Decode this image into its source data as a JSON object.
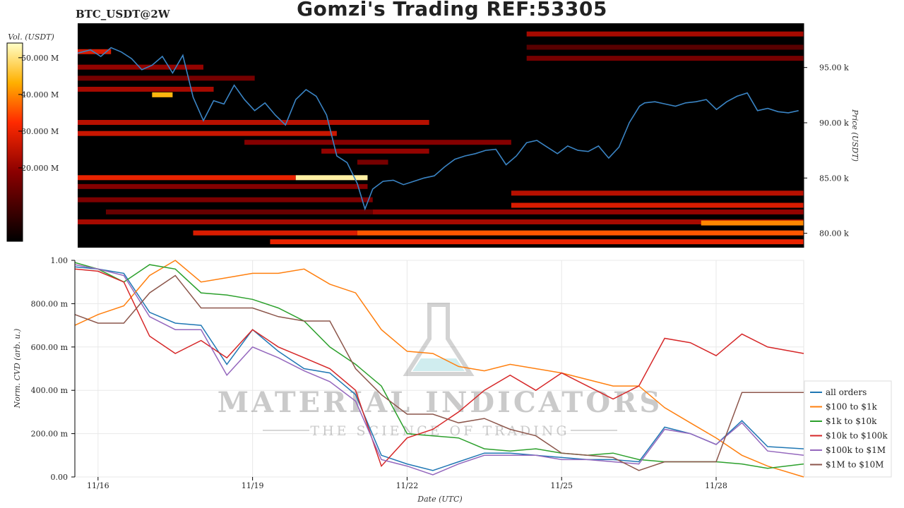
{
  "title": "Gomzi's Trading REF:53305",
  "symbol": "BTC_USDT@2W",
  "colorbar": {
    "label": "Vol. (USDT)",
    "ticks": [
      {
        "label": "50.000 M",
        "value": 50
      },
      {
        "label": "40.000 M",
        "value": 40
      },
      {
        "label": "30.000 M",
        "value": 30
      },
      {
        "label": "20.000 M",
        "value": 20
      }
    ],
    "range": [
      0,
      54
    ]
  },
  "watermark": {
    "main": "MATERIAL INDICATORS",
    "sub": "THE SCIENCE OF TRADING"
  },
  "chart_data": [
    {
      "type": "heatmap",
      "ylabel": "Price (USDT)",
      "ylim": [
        78700,
        99000
      ],
      "yticks": [
        {
          "label": "95.00 k",
          "value": 95000
        },
        {
          "label": "90.00 k",
          "value": 90000
        },
        {
          "label": "85.00 k",
          "value": 85000
        },
        {
          "label": "80.00 k",
          "value": 80000
        }
      ],
      "xlim": [
        15.55,
        29.7
      ],
      "price_line": {
        "color": "#3a84c4",
        "x": [
          15.55,
          15.8,
          16.0,
          16.2,
          16.4,
          16.6,
          16.8,
          17.0,
          17.2,
          17.4,
          17.6,
          17.8,
          18.0,
          18.2,
          18.4,
          18.6,
          18.8,
          19.0,
          19.2,
          19.4,
          19.6,
          19.8,
          20.0,
          20.2,
          20.4,
          20.6,
          20.8,
          21.0,
          21.15,
          21.3,
          21.5,
          21.7,
          21.9,
          22.1,
          22.3,
          22.5,
          22.7,
          22.9,
          23.1,
          23.3,
          23.5,
          23.7,
          23.9,
          24.1,
          24.3,
          24.5,
          24.7,
          24.9,
          25.1,
          25.3,
          25.5,
          25.7,
          25.9,
          26.1,
          26.3,
          26.5,
          26.6,
          26.8,
          27.0,
          27.2,
          27.4,
          27.6,
          27.8,
          28.0,
          28.2,
          28.4,
          28.6,
          28.8,
          29.0,
          29.2,
          29.4,
          29.6
        ],
        "y": [
          96300,
          96600,
          96000,
          96800,
          96400,
          95800,
          94800,
          95200,
          96000,
          94500,
          96100,
          92300,
          90200,
          92000,
          91700,
          93400,
          92100,
          91100,
          91800,
          90700,
          89800,
          92100,
          93000,
          92400,
          90700,
          87000,
          86400,
          84500,
          82200,
          84000,
          84700,
          84800,
          84400,
          84700,
          85000,
          85200,
          86000,
          86700,
          87000,
          87200,
          87500,
          87600,
          86200,
          87000,
          88200,
          88400,
          87800,
          87200,
          87900,
          87500,
          87400,
          87900,
          86800,
          87800,
          90000,
          91500,
          91800,
          91900,
          91700,
          91500,
          91800,
          91900,
          92100,
          91200,
          91900,
          92400,
          92700,
          91100,
          91300,
          91000,
          90900,
          91100
        ]
      },
      "bands": [
        {
          "price": 96400,
          "x0": 15.55,
          "x1": 16.2,
          "level": 28
        },
        {
          "price": 98000,
          "x0": 24.3,
          "x1": 29.7,
          "level": 22
        },
        {
          "price": 96800,
          "x0": 24.3,
          "x1": 29.7,
          "level": 12
        },
        {
          "price": 95800,
          "x0": 24.3,
          "x1": 29.7,
          "level": 16
        },
        {
          "price": 95000,
          "x0": 15.55,
          "x1": 18.0,
          "level": 20
        },
        {
          "price": 94000,
          "x0": 15.55,
          "x1": 19.0,
          "level": 16
        },
        {
          "price": 93000,
          "x0": 15.55,
          "x1": 18.2,
          "level": 22
        },
        {
          "price": 92500,
          "x0": 17.0,
          "x1": 17.4,
          "level": 44
        },
        {
          "price": 90000,
          "x0": 15.55,
          "x1": 22.4,
          "level": 24
        },
        {
          "price": 89000,
          "x0": 15.55,
          "x1": 20.6,
          "level": 26
        },
        {
          "price": 88200,
          "x0": 18.8,
          "x1": 24.0,
          "level": 18
        },
        {
          "price": 87400,
          "x0": 20.3,
          "x1": 22.4,
          "level": 20
        },
        {
          "price": 86400,
          "x0": 21.0,
          "x1": 21.6,
          "level": 16
        },
        {
          "price": 85000,
          "x0": 15.55,
          "x1": 19.8,
          "level": 30
        },
        {
          "price": 85000,
          "x0": 19.8,
          "x1": 21.2,
          "level": 52
        },
        {
          "price": 84200,
          "x0": 15.55,
          "x1": 21.2,
          "level": 18
        },
        {
          "price": 83600,
          "x0": 24.0,
          "x1": 29.7,
          "level": 24
        },
        {
          "price": 83000,
          "x0": 15.55,
          "x1": 21.3,
          "level": 17
        },
        {
          "price": 82500,
          "x0": 24.0,
          "x1": 29.7,
          "level": 28
        },
        {
          "price": 81900,
          "x0": 16.1,
          "x1": 21.3,
          "level": 14
        },
        {
          "price": 81900,
          "x0": 21.3,
          "x1": 29.7,
          "level": 20
        },
        {
          "price": 81000,
          "x0": 15.55,
          "x1": 29.7,
          "level": 22
        },
        {
          "price": 80900,
          "x0": 27.7,
          "x1": 29.7,
          "level": 40
        },
        {
          "price": 80000,
          "x0": 17.8,
          "x1": 21.0,
          "level": 28
        },
        {
          "price": 80000,
          "x0": 21.0,
          "x1": 29.7,
          "level": 36
        },
        {
          "price": 79200,
          "x0": 19.3,
          "x1": 29.7,
          "level": 30
        }
      ]
    },
    {
      "type": "line",
      "xlabel": "Date (UTC)",
      "ylabel": "Norm. CVD (arb. u.)",
      "ylim": [
        0,
        1
      ],
      "xlim": [
        15.55,
        29.7
      ],
      "yticks": [
        {
          "label": "0.00",
          "value": 0
        },
        {
          "label": "200.00 m",
          "value": 0.2
        },
        {
          "label": "400.00 m",
          "value": 0.4
        },
        {
          "label": "600.00 m",
          "value": 0.6
        },
        {
          "label": "800.00 m",
          "value": 0.8
        },
        {
          "label": "1.00",
          "value": 1.0
        }
      ],
      "xticks": [
        {
          "label": "11/16",
          "value": 16
        },
        {
          "label": "11/19",
          "value": 19
        },
        {
          "label": "11/22",
          "value": 22
        },
        {
          "label": "11/25",
          "value": 25
        },
        {
          "label": "11/28",
          "value": 28
        }
      ],
      "legend_position": "right",
      "x": [
        15.55,
        16.0,
        16.5,
        17.0,
        17.5,
        18.0,
        18.5,
        19.0,
        19.5,
        20.0,
        20.5,
        21.0,
        21.5,
        22.0,
        22.5,
        23.0,
        23.5,
        24.0,
        24.5,
        25.0,
        25.5,
        26.0,
        26.5,
        27.0,
        27.5,
        28.0,
        28.5,
        29.0,
        29.7
      ],
      "series": [
        {
          "name": "all orders",
          "color": "#1f77b4",
          "values": [
            0.97,
            0.96,
            0.94,
            0.76,
            0.71,
            0.7,
            0.52,
            0.68,
            0.58,
            0.5,
            0.48,
            0.38,
            0.1,
            0.06,
            0.03,
            0.07,
            0.11,
            0.11,
            0.1,
            0.09,
            0.08,
            0.08,
            0.07,
            0.23,
            0.2,
            0.15,
            0.26,
            0.14,
            0.13
          ]
        },
        {
          "name": "$100 to $1k",
          "color": "#ff7f0e",
          "values": [
            0.7,
            0.75,
            0.79,
            0.93,
            1.0,
            0.9,
            0.92,
            0.94,
            0.94,
            0.96,
            0.89,
            0.85,
            0.68,
            0.58,
            0.57,
            0.51,
            0.49,
            0.52,
            0.5,
            0.48,
            0.45,
            0.42,
            0.42,
            0.32,
            0.25,
            0.18,
            0.1,
            0.05,
            0.0
          ]
        },
        {
          "name": "$1k to $10k",
          "color": "#2ca02c",
          "values": [
            0.99,
            0.96,
            0.9,
            0.98,
            0.96,
            0.85,
            0.84,
            0.82,
            0.78,
            0.72,
            0.6,
            0.52,
            0.42,
            0.2,
            0.19,
            0.18,
            0.13,
            0.12,
            0.13,
            0.11,
            0.1,
            0.11,
            0.08,
            0.07,
            0.07,
            0.07,
            0.06,
            0.04,
            0.06
          ]
        },
        {
          "name": "$10k to $100k",
          "color": "#d62728",
          "values": [
            0.96,
            0.95,
            0.9,
            0.65,
            0.57,
            0.63,
            0.55,
            0.68,
            0.6,
            0.55,
            0.5,
            0.4,
            0.05,
            0.18,
            0.22,
            0.3,
            0.4,
            0.47,
            0.4,
            0.48,
            0.42,
            0.36,
            0.42,
            0.64,
            0.62,
            0.56,
            0.66,
            0.6,
            0.57
          ]
        },
        {
          "name": "$100k to $1M",
          "color": "#9467bd",
          "values": [
            0.98,
            0.96,
            0.93,
            0.74,
            0.68,
            0.68,
            0.47,
            0.6,
            0.55,
            0.49,
            0.44,
            0.35,
            0.08,
            0.05,
            0.01,
            0.06,
            0.1,
            0.1,
            0.1,
            0.08,
            0.08,
            0.07,
            0.06,
            0.22,
            0.2,
            0.15,
            0.25,
            0.12,
            0.1
          ]
        },
        {
          "name": "$1M to $10M",
          "color": "#8c564b",
          "values": [
            0.75,
            0.71,
            0.71,
            0.85,
            0.93,
            0.78,
            0.78,
            0.78,
            0.74,
            0.72,
            0.72,
            0.5,
            0.38,
            0.29,
            0.29,
            0.25,
            0.27,
            0.22,
            0.19,
            0.11,
            0.1,
            0.09,
            0.03,
            0.07,
            0.07,
            0.07,
            0.39,
            0.39,
            0.39
          ]
        }
      ]
    }
  ]
}
